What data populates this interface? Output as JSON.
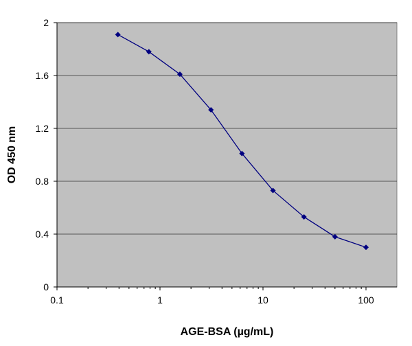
{
  "chart_data": {
    "type": "line",
    "title": "",
    "xlabel": "AGE-BSA (µg/mL)",
    "ylabel": "OD 450 nm",
    "xscale": "log",
    "xlim": [
      0.1,
      200
    ],
    "ylim": [
      0,
      2
    ],
    "xticks": [
      "0.1",
      "1",
      "10",
      "100"
    ],
    "yticks": [
      "0",
      "0.4",
      "0.8",
      "1.2",
      "1.6",
      "2"
    ],
    "grid": "horizontal",
    "legend": "none",
    "colors": {
      "plot_background": "#C0C0C0",
      "line": "#000080",
      "grid": "#808080"
    },
    "series": [
      {
        "x": [
          0.39,
          0.78,
          1.56,
          3.125,
          6.25,
          12.5,
          25,
          50,
          100
        ],
        "y": [
          1.91,
          1.78,
          1.61,
          1.34,
          1.01,
          0.73,
          0.53,
          0.38,
          0.3
        ]
      }
    ]
  }
}
